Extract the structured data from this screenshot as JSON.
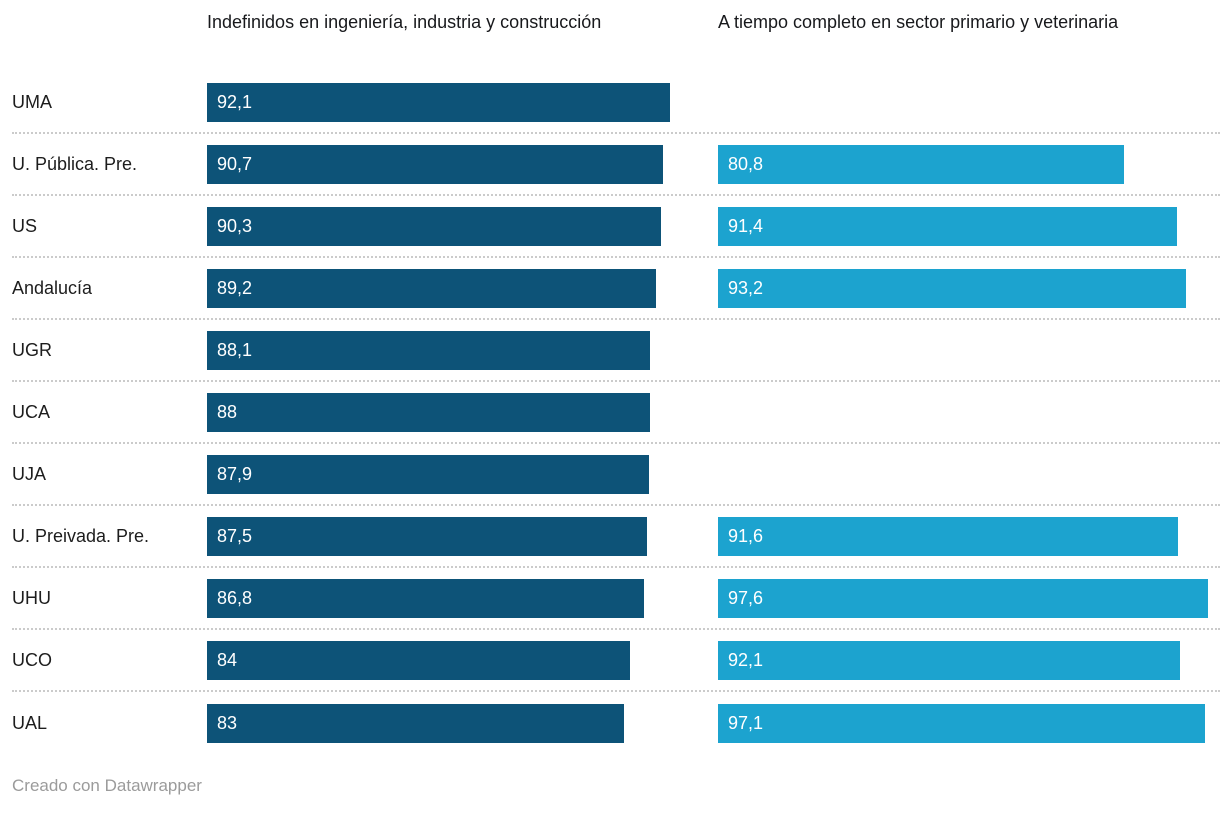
{
  "chart_data": {
    "type": "bar",
    "orientation": "horizontal",
    "grid": "off",
    "legend_position": "column-headers",
    "xmax": 100,
    "xlim": [
      0,
      100
    ],
    "categories": [
      "UMA",
      "U. Pública. Pre.",
      "US",
      "Andalucía",
      "UGR",
      "UCA",
      "UJA",
      "U. Preivada. Pre.",
      "UHU",
      "UCO",
      "UAL"
    ],
    "series": [
      {
        "name": "Indefinidos en ingeniería, industria y construcción",
        "color": "#0d5378",
        "values": [
          92.1,
          90.7,
          90.3,
          89.2,
          88.1,
          88,
          87.9,
          87.5,
          86.8,
          84,
          83
        ],
        "display": [
          "92,1",
          "90,7",
          "90,3",
          "89,2",
          "88,1",
          "88",
          "87,9",
          "87,5",
          "86,8",
          "84",
          "83"
        ]
      },
      {
        "name": "A tiempo completo en sector primario y veterinaria",
        "color": "#1ca3cf",
        "values": [
          null,
          80.8,
          91.4,
          93.2,
          null,
          null,
          null,
          91.6,
          97.6,
          92.1,
          97.1
        ],
        "display": [
          null,
          "80,8",
          "91,4",
          "93,2",
          null,
          null,
          null,
          "91,6",
          "97,6",
          "92,1",
          "97,1"
        ]
      }
    ]
  },
  "footer": {
    "credit": "Creado con Datawrapper"
  },
  "colors": {
    "dark_blue": "#0d5378",
    "light_blue": "#1ca3cf",
    "separator": "#cbcbcb",
    "footer_text": "#9b9b9b"
  }
}
